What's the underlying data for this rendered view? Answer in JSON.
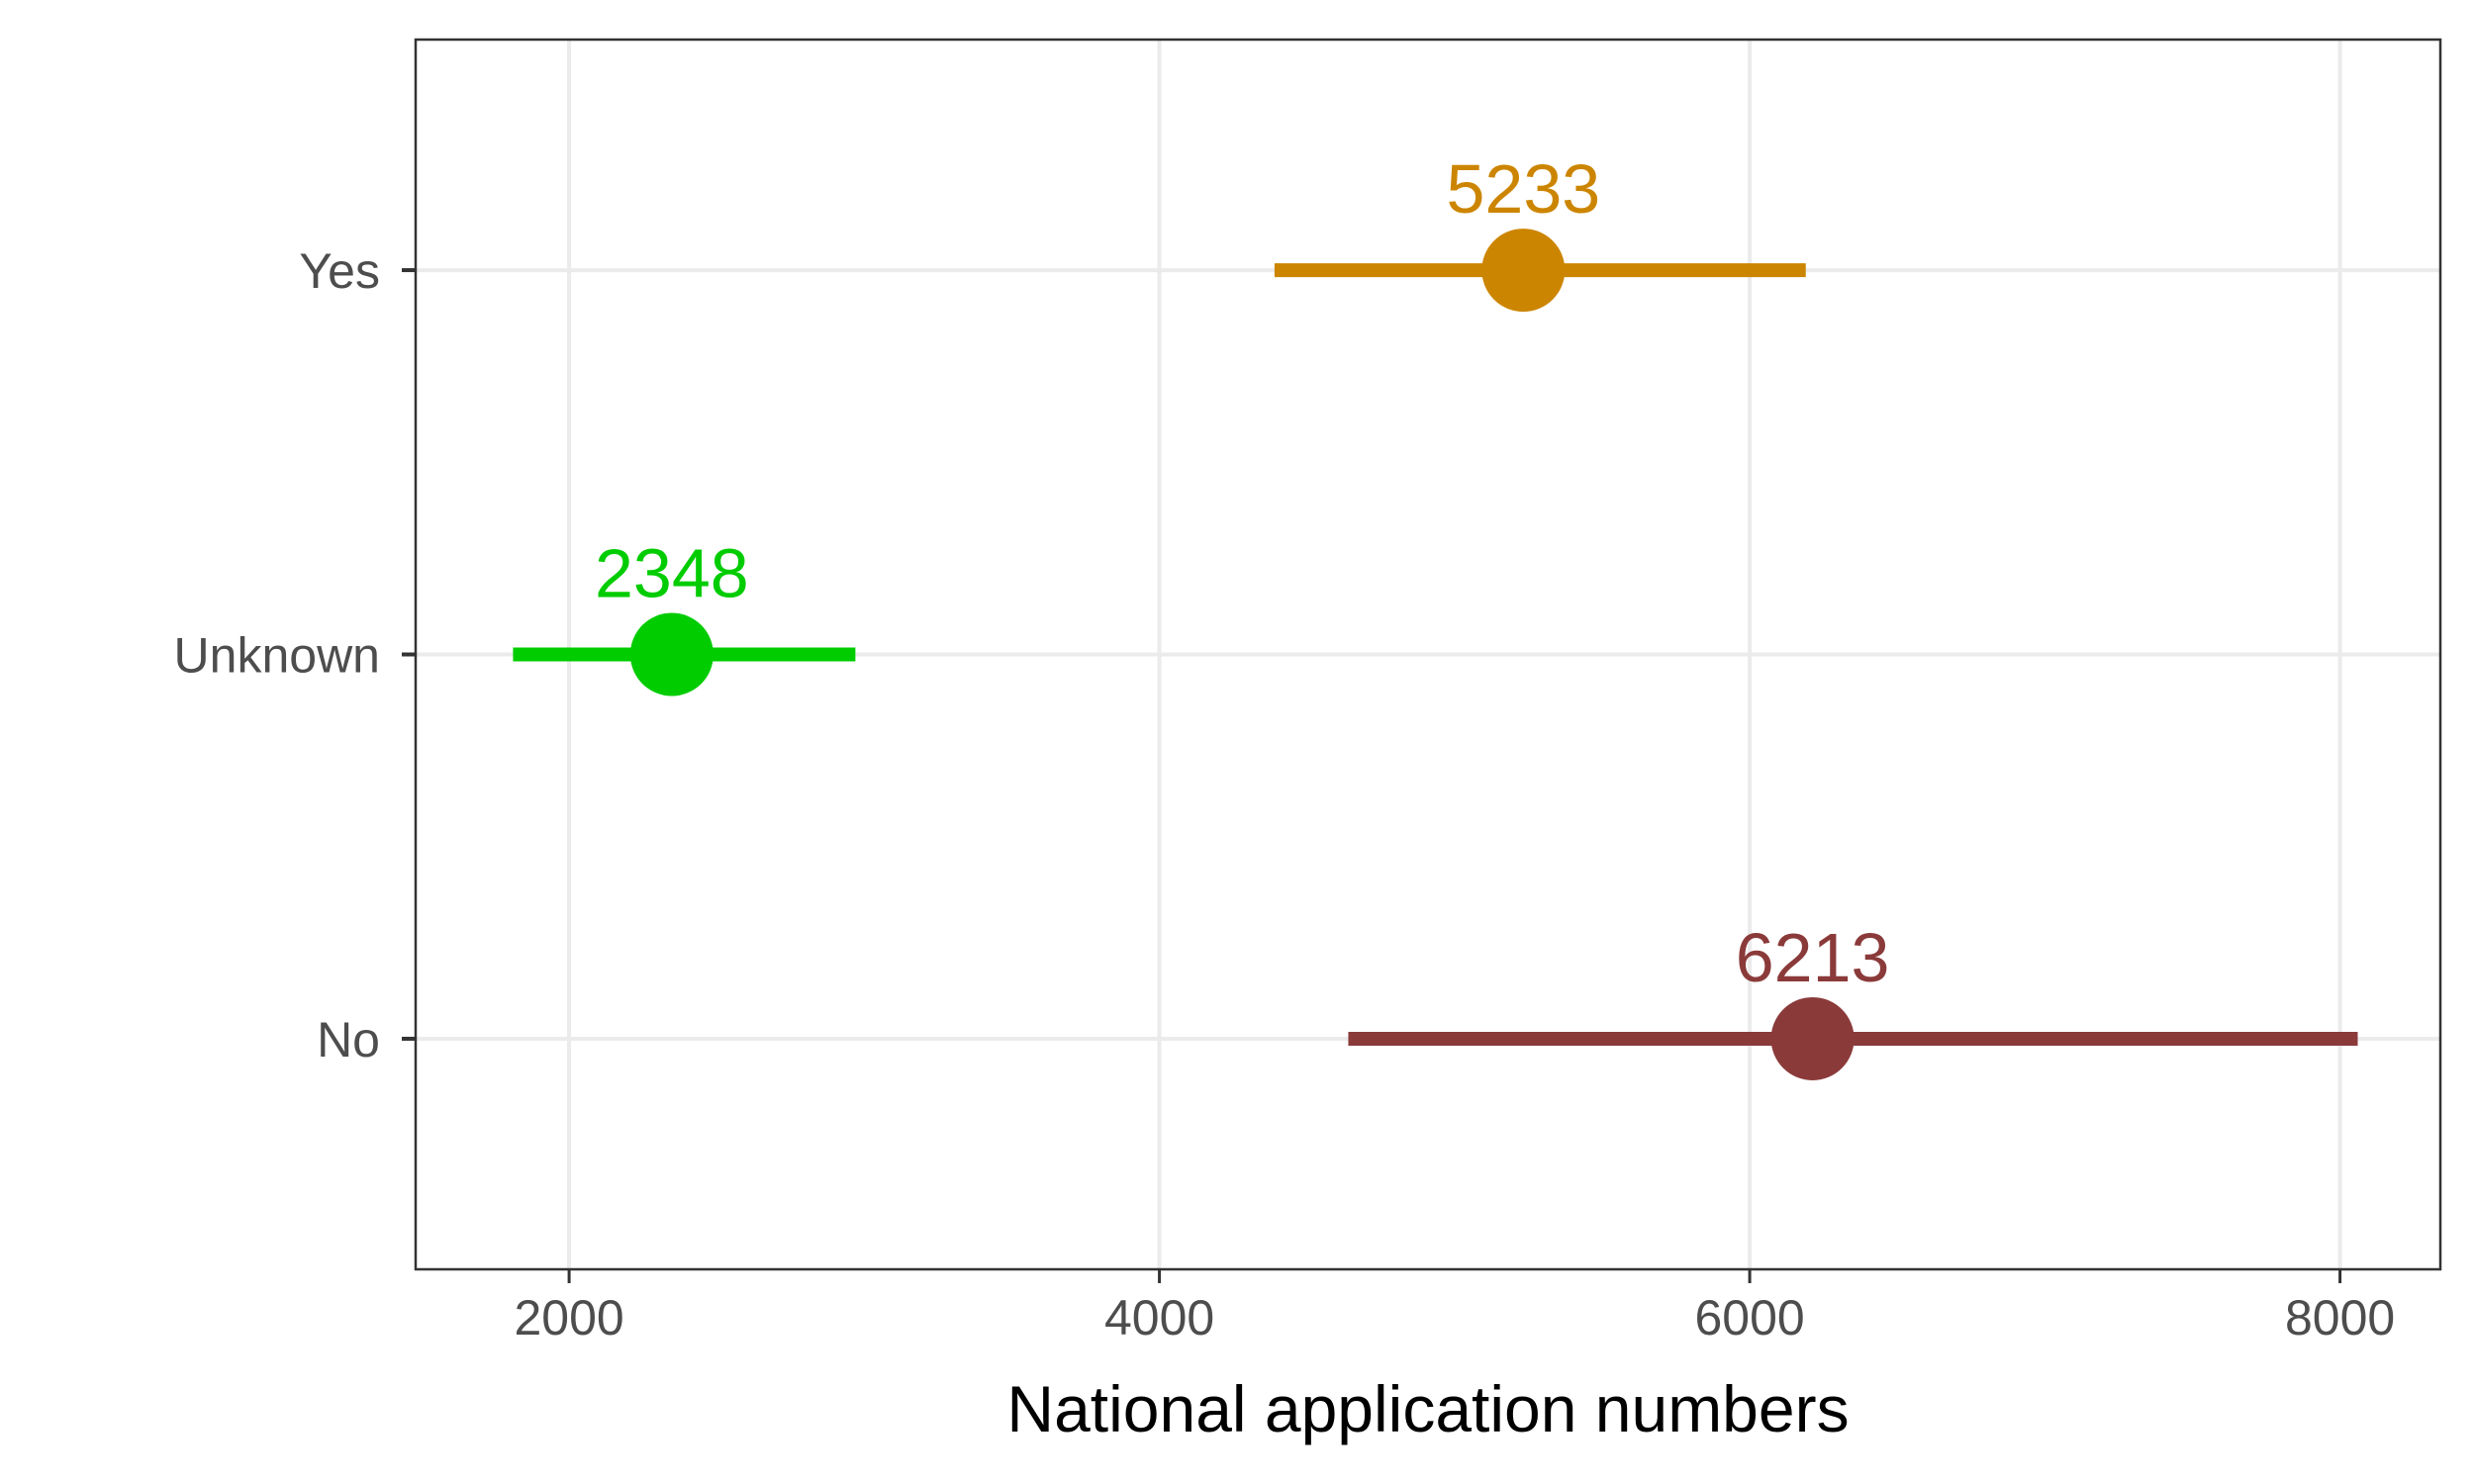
{
  "chart_data": {
    "type": "dot-interval",
    "xlabel": "National application numbers",
    "ylabel": "",
    "xlim": [
      1480,
      8340
    ],
    "xticks": [
      2000,
      4000,
      6000,
      8000
    ],
    "xtick_labels": [
      "2000",
      "4000",
      "6000",
      "8000"
    ],
    "categories": [
      "Yes",
      "Unknown",
      "No"
    ],
    "points": [
      {
        "category": "Yes",
        "value": 5233,
        "lower": 4390,
        "upper": 6190,
        "label": "5233",
        "color": "#CC8500"
      },
      {
        "category": "Unknown",
        "value": 2348,
        "lower": 1810,
        "upper": 2970,
        "label": "2348",
        "color": "#00CC00"
      },
      {
        "category": "No",
        "value": 6213,
        "lower": 4640,
        "upper": 8060,
        "label": "6213",
        "color": "#8B3A3A"
      }
    ],
    "grid": true,
    "legend": "none"
  }
}
